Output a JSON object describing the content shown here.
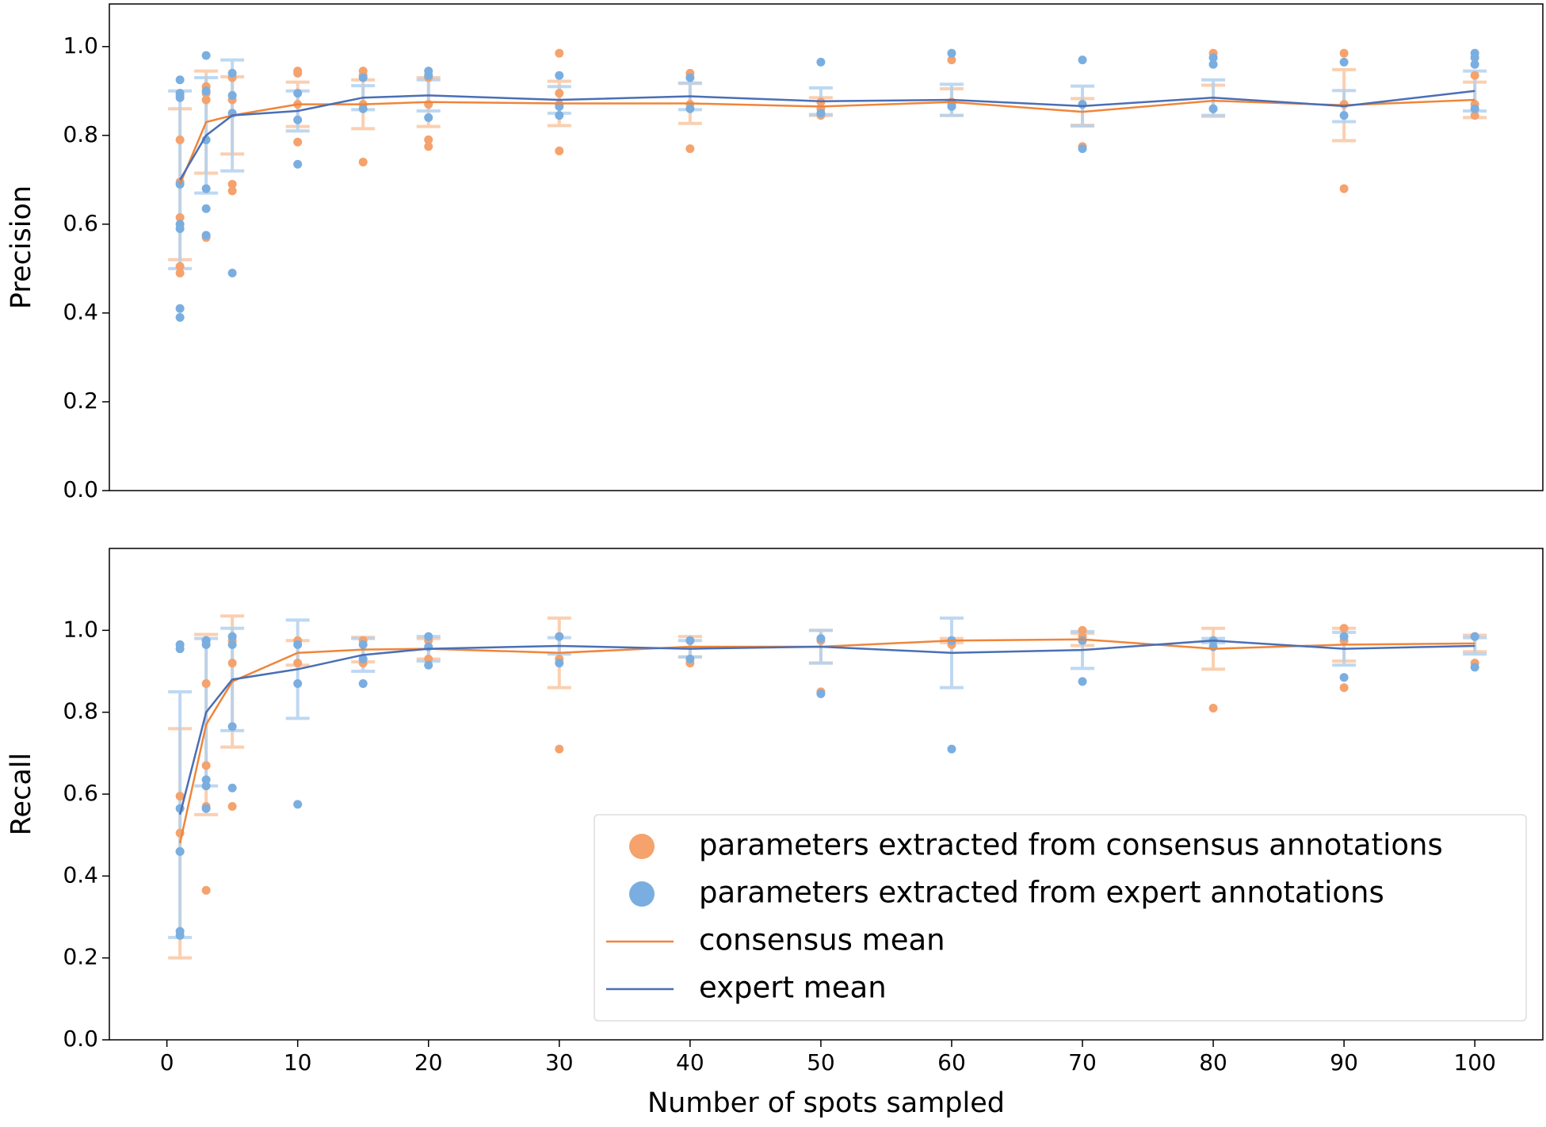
{
  "chart_data": [
    {
      "type": "line",
      "ylabel": "Precision",
      "x": [
        1,
        3,
        5,
        10,
        15,
        20,
        30,
        40,
        50,
        60,
        70,
        80,
        90,
        100
      ],
      "xlim": [
        -4.4,
        105.2
      ],
      "ylim": [
        0,
        1.096
      ],
      "yticks": [
        {
          "value": 0,
          "label": "0.0"
        },
        0.2,
        0.4,
        0.6,
        0.8,
        {
          "value": 1,
          "label": "1.0"
        }
      ],
      "series": [
        {
          "type": "scatter",
          "color": "#f5a26d",
          "x": [
            1,
            1,
            1,
            1,
            1,
            1,
            3,
            3,
            3,
            3,
            5,
            5,
            5,
            5,
            10,
            10,
            10,
            10,
            15,
            15,
            15,
            15,
            20,
            20,
            20,
            20,
            30,
            30,
            30,
            30,
            40,
            40,
            40,
            50,
            50,
            50,
            60,
            60,
            60,
            70,
            70,
            80,
            80,
            90,
            90,
            90,
            100,
            100,
            100
          ],
          "values": [
            0.79,
            0.615,
            0.505,
            0.49,
            0.695,
            0.89,
            0.91,
            0.895,
            0.88,
            0.57,
            0.69,
            0.675,
            0.93,
            0.88,
            0.945,
            0.94,
            0.785,
            0.87,
            0.945,
            0.935,
            0.74,
            0.87,
            0.79,
            0.775,
            0.93,
            0.87,
            0.985,
            0.895,
            0.765,
            0.87,
            0.94,
            0.77,
            0.87,
            0.86,
            0.845,
            0.875,
            0.97,
            0.87,
            0.875,
            0.775,
            0.87,
            0.985,
            0.86,
            0.985,
            0.68,
            0.87,
            0.935,
            0.845,
            0.87
          ]
        },
        {
          "type": "scatter",
          "color": "#7aaee0",
          "x": [
            1,
            1,
            1,
            1,
            1,
            1,
            1,
            1,
            3,
            3,
            3,
            3,
            3,
            3,
            5,
            5,
            5,
            5,
            10,
            10,
            10,
            15,
            15,
            20,
            20,
            20,
            30,
            30,
            30,
            40,
            40,
            50,
            50,
            60,
            60,
            70,
            70,
            70,
            80,
            80,
            80,
            90,
            90,
            100,
            100,
            100,
            100
          ],
          "values": [
            0.925,
            0.895,
            0.885,
            0.6,
            0.59,
            0.41,
            0.39,
            0.69,
            0.98,
            0.9,
            0.68,
            0.635,
            0.575,
            0.79,
            0.94,
            0.89,
            0.85,
            0.49,
            0.895,
            0.835,
            0.735,
            0.93,
            0.86,
            0.945,
            0.935,
            0.84,
            0.935,
            0.845,
            0.865,
            0.93,
            0.86,
            0.965,
            0.85,
            0.985,
            0.865,
            0.97,
            0.77,
            0.87,
            0.975,
            0.96,
            0.86,
            0.965,
            0.845,
            0.985,
            0.975,
            0.96,
            0.86
          ]
        },
        {
          "type": "line",
          "color": "#f0853a",
          "error_color": "#f9c7a3",
          "values": [
            0.69,
            0.83,
            0.845,
            0.87,
            0.87,
            0.875,
            0.872,
            0.872,
            0.865,
            0.875,
            0.853,
            0.878,
            0.868,
            0.88
          ],
          "errors": [
            0.17,
            0.115,
            0.087,
            0.05,
            0.055,
            0.055,
            0.05,
            0.045,
            0.02,
            0.03,
            0.03,
            0.035,
            0.08,
            0.04
          ]
        },
        {
          "type": "line",
          "color": "#4a6fb5",
          "error_color": "#b3d1ee",
          "values": [
            0.7,
            0.8,
            0.845,
            0.855,
            0.885,
            0.89,
            0.88,
            0.888,
            0.877,
            0.88,
            0.866,
            0.885,
            0.866,
            0.9
          ],
          "errors": [
            0.2,
            0.13,
            0.125,
            0.045,
            0.027,
            0.035,
            0.03,
            0.03,
            0.03,
            0.035,
            0.045,
            0.04,
            0.035,
            0.045
          ]
        }
      ]
    },
    {
      "type": "line",
      "ylabel": "Recall",
      "xlabel": "Number of spots sampled",
      "x": [
        1,
        3,
        5,
        10,
        15,
        20,
        30,
        40,
        50,
        60,
        70,
        80,
        90,
        100
      ],
      "xlim": [
        -4.4,
        105.2
      ],
      "ylim": [
        0,
        1.2
      ],
      "xticks": [
        0,
        10,
        20,
        30,
        40,
        50,
        60,
        70,
        80,
        90,
        100
      ],
      "yticks": [
        {
          "value": 0,
          "label": "0.0"
        },
        0.2,
        0.4,
        0.6,
        0.8,
        {
          "value": 1,
          "label": "1.0"
        }
      ],
      "legend": "lower right",
      "series": [
        {
          "type": "scatter",
          "name": "parameters extracted from consensus annotations",
          "color": "#f5a26d",
          "x": [
            1,
            1,
            1,
            3,
            3,
            3,
            3,
            3,
            5,
            5,
            5,
            10,
            10,
            15,
            15,
            20,
            20,
            30,
            30,
            30,
            40,
            40,
            50,
            50,
            60,
            60,
            70,
            70,
            80,
            80,
            90,
            90,
            90,
            100,
            100
          ],
          "values": [
            0.595,
            0.505,
            0.46,
            0.87,
            0.67,
            0.57,
            0.365,
            0.975,
            0.92,
            0.57,
            0.975,
            0.975,
            0.92,
            0.975,
            0.92,
            0.975,
            0.93,
            0.71,
            0.985,
            0.93,
            0.975,
            0.92,
            0.85,
            0.975,
            0.975,
            0.965,
            1.0,
            0.985,
            0.81,
            0.975,
            1.005,
            0.86,
            0.975,
            0.985,
            0.92
          ]
        },
        {
          "type": "scatter",
          "name": "parameters extracted from expert annotations",
          "color": "#7aaee0",
          "x": [
            1,
            1,
            1,
            1,
            1,
            1,
            3,
            3,
            3,
            3,
            3,
            5,
            5,
            5,
            5,
            10,
            10,
            10,
            15,
            15,
            15,
            20,
            20,
            20,
            30,
            30,
            40,
            40,
            50,
            50,
            60,
            60,
            70,
            70,
            80,
            80,
            90,
            90,
            100,
            100
          ],
          "values": [
            0.965,
            0.955,
            0.565,
            0.46,
            0.265,
            0.255,
            0.975,
            0.965,
            0.635,
            0.62,
            0.565,
            0.985,
            0.965,
            0.765,
            0.615,
            0.965,
            0.87,
            0.575,
            0.965,
            0.87,
            0.93,
            0.985,
            0.915,
            0.96,
            0.985,
            0.92,
            0.975,
            0.93,
            0.98,
            0.845,
            0.975,
            0.71,
            0.975,
            0.875,
            0.975,
            0.96,
            0.985,
            0.885,
            0.985,
            0.91
          ]
        },
        {
          "type": "line",
          "name": "consensus mean",
          "color": "#f0853a",
          "error_color": "#f9c7a3",
          "values": [
            0.48,
            0.77,
            0.875,
            0.945,
            0.953,
            0.955,
            0.945,
            0.96,
            0.96,
            0.975,
            0.978,
            0.955,
            0.965,
            0.968
          ],
          "errors": [
            0.28,
            0.22,
            0.16,
            0.03,
            0.03,
            0.025,
            0.085,
            0.025,
            0.04,
            0.005,
            0.015,
            0.05,
            0.04,
            0.02
          ]
        },
        {
          "type": "line",
          "name": "expert mean",
          "color": "#4a6fb5",
          "error_color": "#b3d1ee",
          "values": [
            0.55,
            0.8,
            0.88,
            0.905,
            0.94,
            0.955,
            0.962,
            0.955,
            0.96,
            0.945,
            0.952,
            0.975,
            0.955,
            0.962
          ],
          "errors": [
            0.3,
            0.18,
            0.125,
            0.12,
            0.04,
            0.03,
            0.02,
            0.02,
            0.04,
            0.085,
            0.045,
            0.005,
            0.04,
            0.02
          ]
        }
      ]
    }
  ]
}
